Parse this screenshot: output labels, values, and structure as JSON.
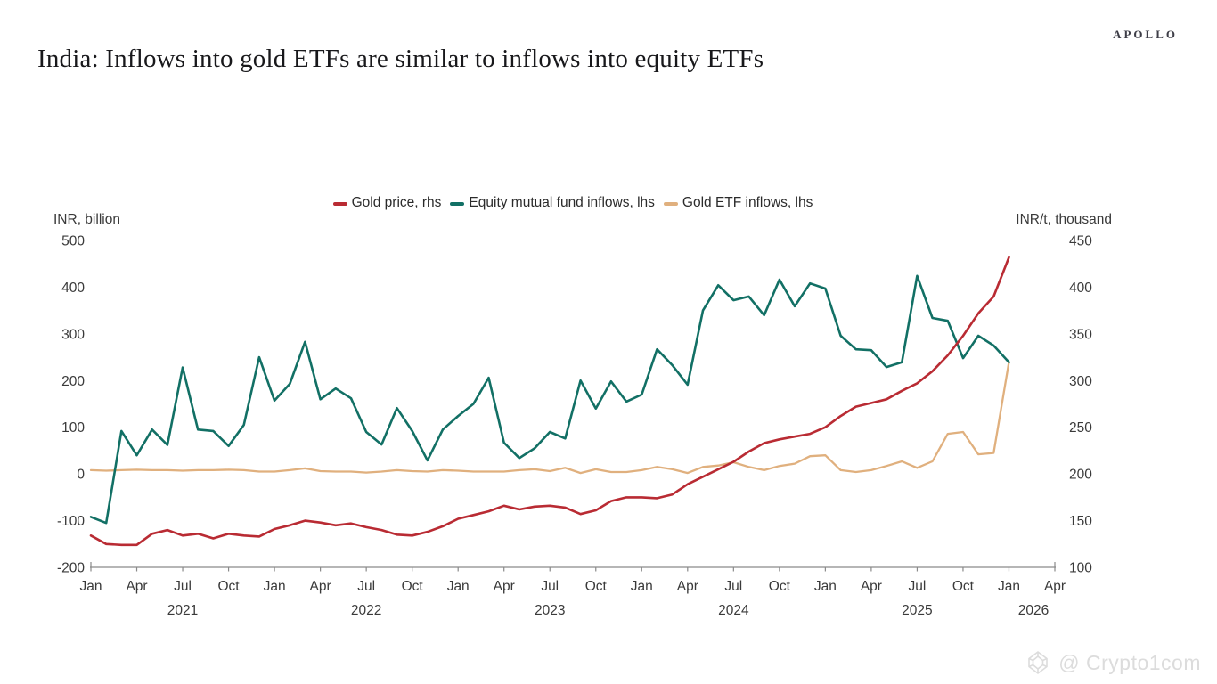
{
  "header": {
    "brand": "APOLLO",
    "title": "India: Inflows into gold ETFs are similar to inflows into equity ETFs"
  },
  "watermark": {
    "text": "@ Crypto1com"
  },
  "colors": {
    "gold_price": "#b92b33",
    "equity_inflows": "#127065",
    "gold_etf_inflows": "#e0b07e",
    "axis_line": "#8a8a8a",
    "axis_text": "#3a3a3a"
  },
  "chart_data": {
    "type": "line",
    "title": "India: Inflows into gold ETFs are similar to inflows into equity ETFs",
    "grid": false,
    "legend_position": "top",
    "frequency": "monthly",
    "x_start": "Jan 2021",
    "x_end_axis": "Apr 2026",
    "months_span": 63,
    "left_axis": {
      "label": "INR, billion",
      "min": -200,
      "max": 500,
      "ticks": [
        500,
        400,
        300,
        200,
        100,
        0,
        -100,
        -200
      ]
    },
    "right_axis": {
      "label": "INR/t, thousand",
      "min": 100,
      "max": 450,
      "ticks": [
        450,
        400,
        350,
        300,
        250,
        200,
        150,
        100
      ]
    },
    "x_axis": {
      "quarter_tick_labels": [
        "Jan",
        "Apr",
        "Jul",
        "Oct"
      ],
      "year_labels": [
        {
          "label": "2021",
          "month_offset": 6
        },
        {
          "label": "2022",
          "month_offset": 18
        },
        {
          "label": "2023",
          "month_offset": 30
        },
        {
          "label": "2024",
          "month_offset": 42
        },
        {
          "label": "2025",
          "month_offset": 54
        },
        {
          "label": "2026",
          "month_offset": 61.6
        }
      ]
    },
    "series": [
      {
        "name": "Gold price, rhs",
        "axis": "right",
        "color": "#b92b33",
        "start": "2021-01",
        "values": [
          134,
          125,
          124,
          124,
          136,
          140,
          134,
          136,
          131,
          136,
          134,
          133,
          141,
          145,
          150,
          148,
          145,
          147,
          143,
          140,
          135,
          134,
          138,
          144,
          152,
          156,
          160,
          166,
          162,
          165,
          166,
          164,
          157,
          161,
          171,
          175,
          175,
          174,
          178,
          189,
          197,
          205,
          213,
          224,
          233,
          237,
          240,
          243,
          250,
          262,
          272,
          276,
          280,
          289,
          297,
          310,
          327,
          348,
          372,
          390,
          432
        ]
      },
      {
        "name": "Equity mutual fund inflows, lhs",
        "axis": "left",
        "color": "#127065",
        "start": "2021-01",
        "values": [
          -92,
          -105,
          92,
          40,
          95,
          62,
          228,
          95,
          92,
          60,
          105,
          250,
          157,
          193,
          283,
          160,
          183,
          162,
          90,
          63,
          141,
          92,
          29,
          95,
          124,
          150,
          206,
          67,
          34,
          55,
          90,
          76,
          200,
          140,
          198,
          155,
          170,
          267,
          233,
          191,
          350,
          404,
          372,
          380,
          340,
          416,
          359,
          408,
          397,
          296,
          267,
          265,
          229,
          239,
          424,
          334,
          328,
          248,
          296,
          275,
          239
        ]
      },
      {
        "name": "Gold ETF inflows, lhs",
        "axis": "left",
        "color": "#e0b07e",
        "start": "2021-01",
        "values": [
          8,
          7,
          8,
          9,
          8,
          8,
          7,
          8,
          8,
          9,
          8,
          5,
          5,
          8,
          12,
          6,
          5,
          5,
          3,
          5,
          8,
          6,
          5,
          8,
          7,
          5,
          5,
          5,
          8,
          10,
          6,
          13,
          2,
          10,
          4,
          4,
          8,
          15,
          10,
          2,
          15,
          18,
          25,
          15,
          8,
          17,
          22,
          38,
          40,
          8,
          4,
          8,
          17,
          27,
          13,
          27,
          86,
          90,
          42,
          45,
          240
        ]
      }
    ]
  }
}
